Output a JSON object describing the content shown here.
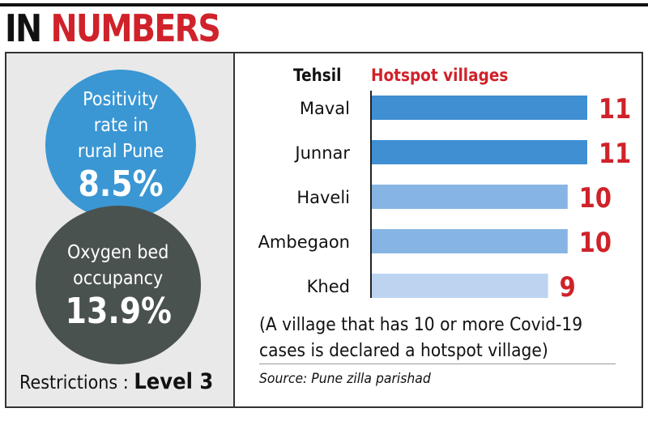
{
  "heading": {
    "word1": "IN",
    "word2": "NUMBERS"
  },
  "stats": {
    "positivity": {
      "label_lines": [
        "Positivity",
        "rate in",
        "rural Pune"
      ],
      "value": "8.5%"
    },
    "oxygen": {
      "label_lines": [
        "Oxygen bed",
        "occupancy"
      ],
      "value": "13.9%"
    }
  },
  "restrictions": {
    "label": "Restrictions : ",
    "value": "Level 3"
  },
  "chart_data": {
    "type": "bar",
    "orientation": "horizontal",
    "category_header": "Tehsil",
    "value_header": "Hotspot villages",
    "categories": [
      "Maval",
      "Junnar",
      "Haveli",
      "Ambegaon",
      "Khed"
    ],
    "values": [
      11,
      11,
      10,
      10,
      9
    ],
    "value_labels": [
      "11",
      "11",
      "10",
      "10",
      "9"
    ],
    "colors": [
      "#3f8fd2",
      "#3f8fd2",
      "#86b5e4",
      "#86b5e4",
      "#bcd4f0"
    ],
    "value_color": "#d0222a",
    "xlim": [
      0,
      11
    ]
  },
  "note_lines": [
    "(A village that has 10 or more Covid-19",
    "cases is declared a hotspot village)"
  ],
  "source": "Source: Pune zilla parishad",
  "colors": {
    "accent_red": "#d0222a",
    "circle_blue": "#3a97d4",
    "circle_dark": "#4a5250",
    "panel_gray": "#e9e9e9"
  }
}
